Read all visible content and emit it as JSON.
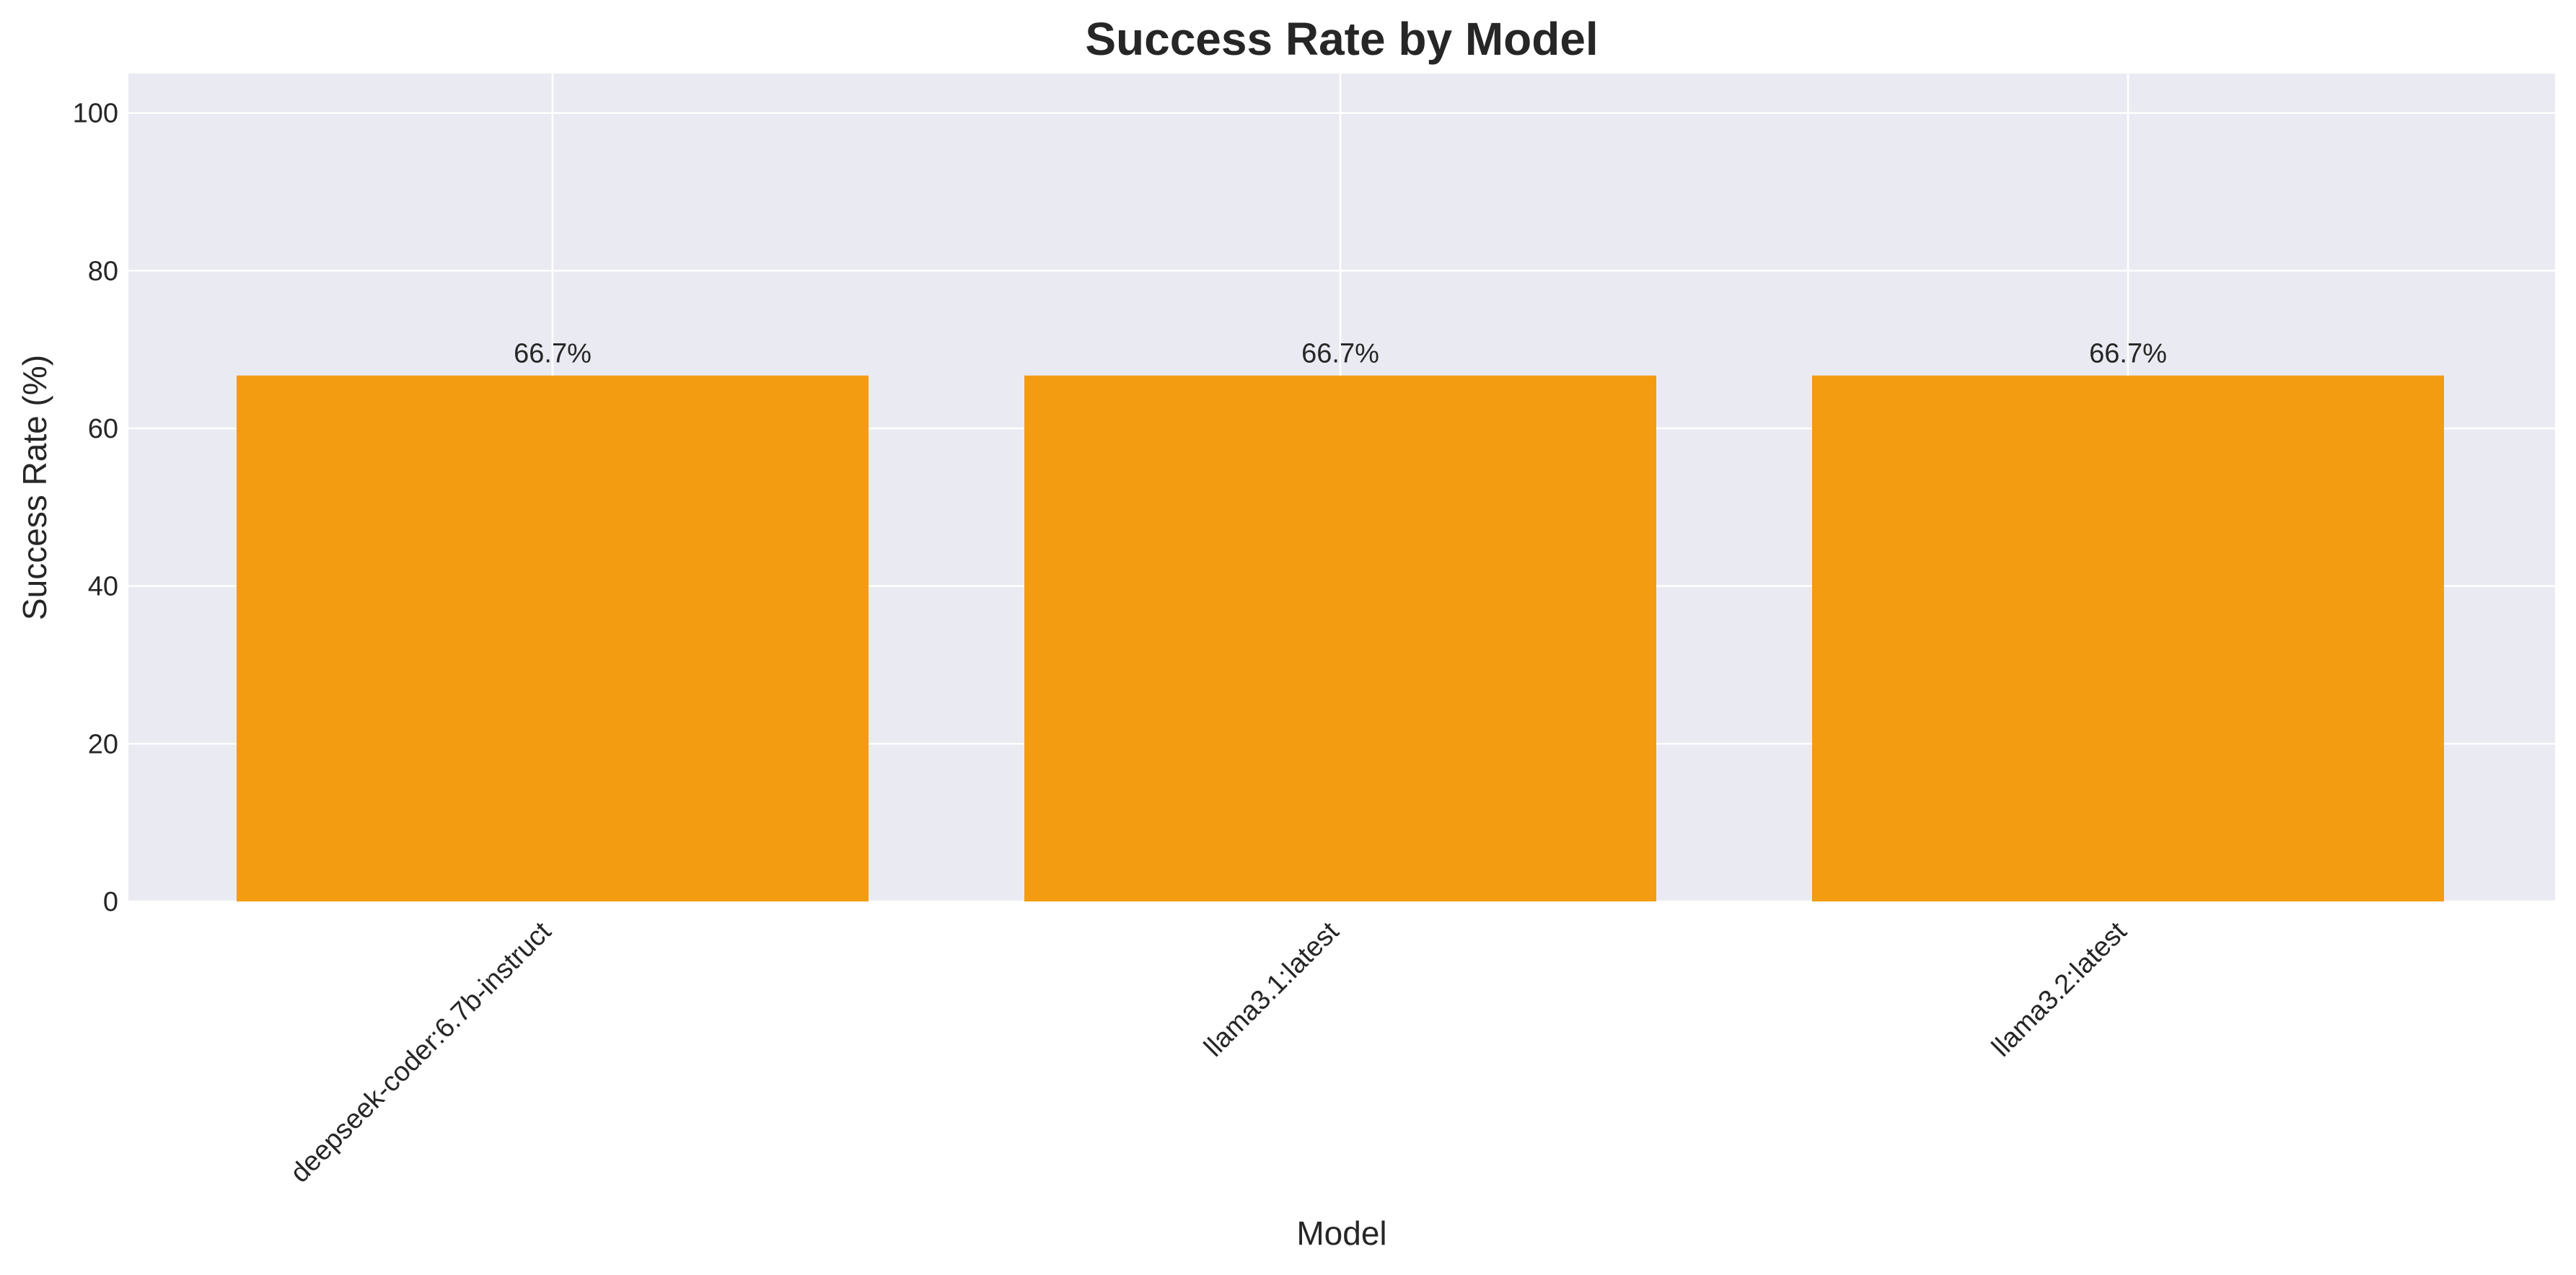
{
  "chart_data": {
    "type": "bar",
    "title": "Success Rate by Model",
    "xlabel": "Model",
    "ylabel": "Success Rate (%)",
    "categories": [
      "deepseek-coder:6.7b-instruct",
      "llama3.1:latest",
      "llama3.2:latest"
    ],
    "values": [
      66.7,
      66.7,
      66.7
    ],
    "data_labels": [
      "66.7%",
      "66.7%",
      "66.7%"
    ],
    "ylim": [
      0,
      105
    ],
    "yticks": [
      0,
      20,
      40,
      60,
      80,
      100
    ],
    "grid": true,
    "bar_color": "#f39c12",
    "plot_background": "#eaeaf2",
    "grid_color": "#ffffff"
  }
}
